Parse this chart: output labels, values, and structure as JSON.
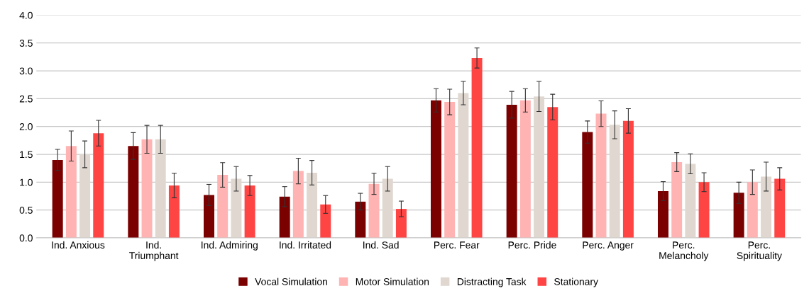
{
  "chart_data": {
    "type": "bar",
    "categories": [
      "Ind. Anxious",
      "Ind.\nTriumphant",
      "Ind. Admiring",
      "Ind. Irritated",
      "Ind. Sad",
      "Perc. Fear",
      "Perc. Pride",
      "Perc. Anger",
      "Perc.\nMelancholy",
      "Perc.\nSpirituality"
    ],
    "series": [
      {
        "name": "Vocal Simulation",
        "color": "#7b0000",
        "values": [
          1.4,
          1.65,
          0.77,
          0.74,
          0.65,
          2.47,
          2.39,
          1.9,
          0.84,
          0.81
        ],
        "errors": [
          0.19,
          0.24,
          0.19,
          0.18,
          0.15,
          0.21,
          0.24,
          0.2,
          0.17,
          0.19
        ]
      },
      {
        "name": "Motor Simulation",
        "color": "#ffb3b3",
        "values": [
          1.65,
          1.77,
          1.13,
          1.2,
          0.97,
          2.44,
          2.47,
          2.23,
          1.36,
          1.0
        ],
        "errors": [
          0.27,
          0.25,
          0.22,
          0.23,
          0.19,
          0.23,
          0.21,
          0.23,
          0.17,
          0.22
        ]
      },
      {
        "name": "Distracting Task",
        "color": "#e0d8d0",
        "values": [
          1.5,
          1.77,
          1.06,
          1.17,
          1.06,
          2.6,
          2.54,
          2.03,
          1.33,
          1.1
        ],
        "errors": [
          0.24,
          0.25,
          0.22,
          0.22,
          0.22,
          0.21,
          0.27,
          0.25,
          0.18,
          0.26
        ]
      },
      {
        "name": "Stationary",
        "color": "#ff4444",
        "values": [
          1.88,
          0.94,
          0.94,
          0.6,
          0.52,
          3.23,
          2.35,
          2.1,
          1.0,
          1.06
        ],
        "errors": [
          0.23,
          0.22,
          0.18,
          0.16,
          0.14,
          0.18,
          0.23,
          0.22,
          0.17,
          0.2
        ]
      }
    ],
    "ylim": [
      0,
      4.0
    ],
    "yticks": [
      {
        "value": 0,
        "label": "0.0"
      },
      {
        "value": 0.5,
        "label": "0.5"
      },
      {
        "value": 1,
        "label": "1.0"
      },
      {
        "value": 1.5,
        "label": "1.5"
      },
      {
        "value": 2,
        "label": "2.0"
      },
      {
        "value": 2.5,
        "label": "2.5"
      },
      {
        "value": 3,
        "label": "3.0"
      },
      {
        "value": 3.5,
        "label": "3.5"
      },
      {
        "value": 4,
        "label": "4.0"
      }
    ],
    "grid": "y",
    "legend": "bottom"
  }
}
